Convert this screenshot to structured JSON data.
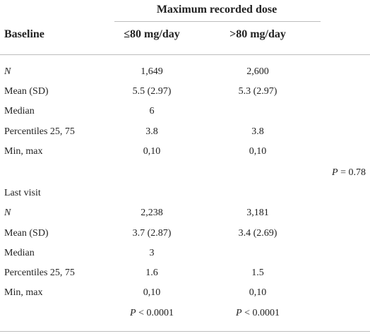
{
  "header": {
    "group_label": "Maximum recorded dose",
    "stub_label": "Baseline",
    "col1_label": "≤80 mg/day",
    "col2_label": ">80 mg/day"
  },
  "sections": [
    {
      "rows": [
        {
          "label": "N",
          "col1": "1,649",
          "col2": "2,600"
        },
        {
          "label": "Mean (SD)",
          "col1": "5.5 (2.97)",
          "col2": "5.3 (2.97)"
        },
        {
          "label": "Median",
          "col1": "6",
          "col2": ""
        },
        {
          "label": "Percentiles 25, 75",
          "col1": "3.8",
          "col2": "3.8"
        },
        {
          "label": "Min, max",
          "col1": "0,10",
          "col2": "0,10"
        }
      ],
      "pvalue_label": "P",
      "pvalue_text": " = 0.78"
    },
    {
      "title": "Last visit",
      "rows": [
        {
          "label": "N",
          "col1": "2,238",
          "col2": "3,181"
        },
        {
          "label": "Mean (SD)",
          "col1": "3.7 (2.87)",
          "col2": "3.4 (2.69)"
        },
        {
          "label": "Median",
          "col1": "3",
          "col2": ""
        },
        {
          "label": "Percentiles 25, 75",
          "col1": "1.6",
          "col2": "1.5"
        },
        {
          "label": "Min, max",
          "col1": "0,10",
          "col2": "0,10"
        }
      ],
      "pvalues": [
        {
          "label": "P",
          "text": " < 0.0001"
        },
        {
          "label": "P",
          "text": " < 0.0001"
        }
      ]
    }
  ]
}
